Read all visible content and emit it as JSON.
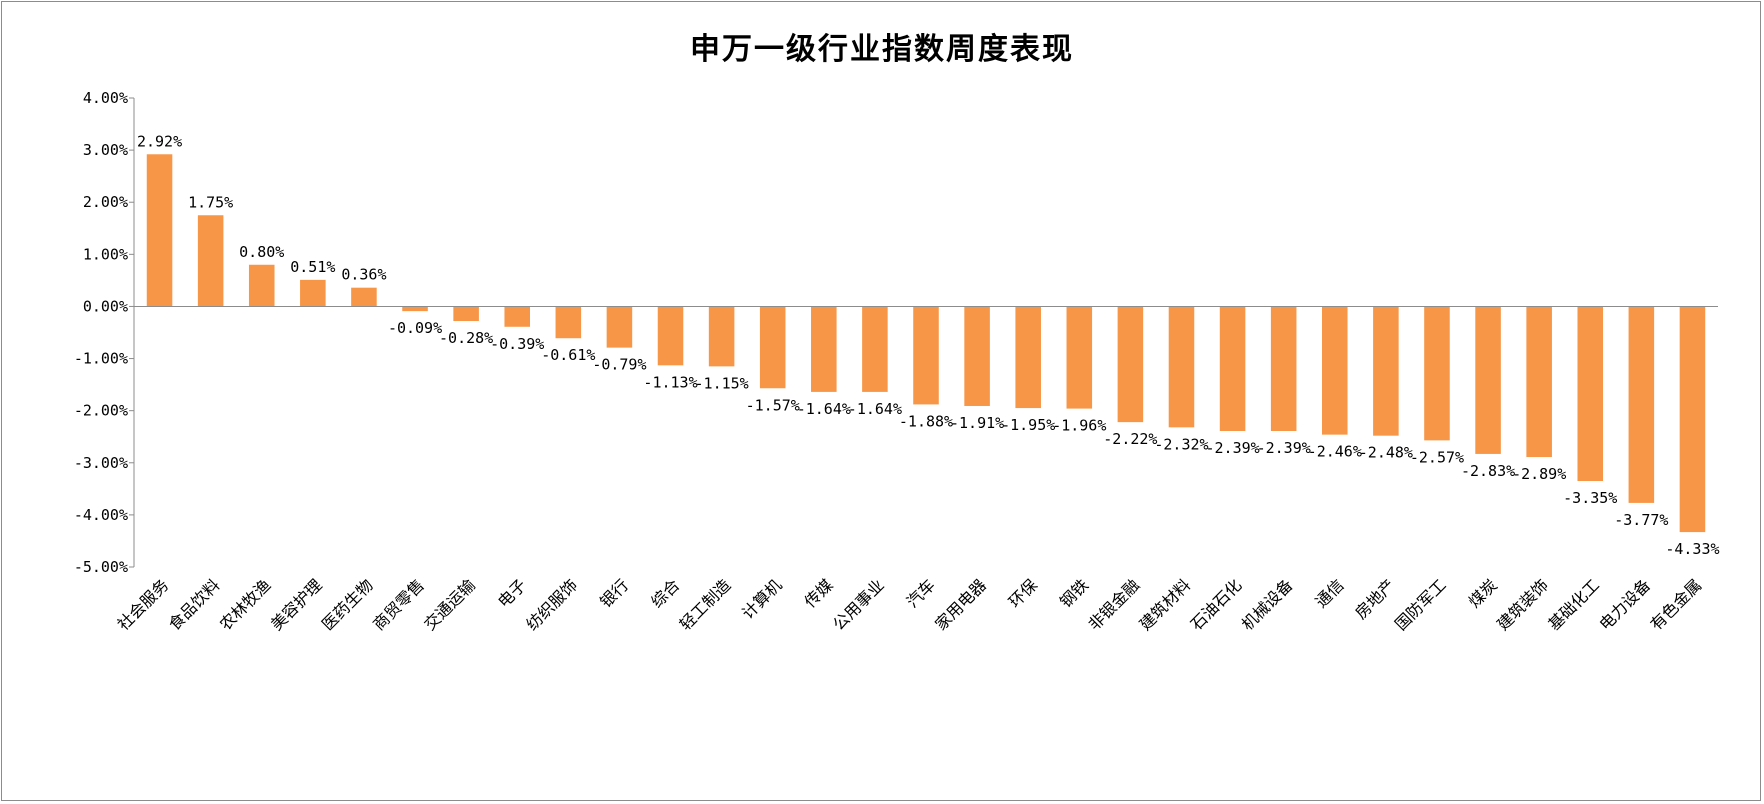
{
  "chart_data": {
    "type": "bar",
    "title": "申万一级行业指数周度表现",
    "xlabel": "",
    "ylabel": "",
    "ylim": [
      -5,
      4
    ],
    "yticks": [
      4,
      3,
      2,
      1,
      0,
      -1,
      -2,
      -3,
      -4,
      -5
    ],
    "ytick_labels": [
      "4.00%",
      "3.00%",
      "2.00%",
      "1.00%",
      "0.00%",
      "-1.00%",
      "-2.00%",
      "-3.00%",
      "-4.00%",
      "-5.00%"
    ],
    "grid": false,
    "legend": "none",
    "bar_color": "#F79646",
    "categories": [
      "社会服务",
      "食品饮料",
      "农林牧渔",
      "美容护理",
      "医药生物",
      "商贸零售",
      "交通运输",
      "电子",
      "纺织服饰",
      "银行",
      "综合",
      "轻工制造",
      "计算机",
      "传媒",
      "公用事业",
      "汽车",
      "家用电器",
      "环保",
      "钢铁",
      "非银金融",
      "建筑材料",
      "石油石化",
      "机械设备",
      "通信",
      "房地产",
      "国防军工",
      "煤炭",
      "建筑装饰",
      "基础化工",
      "电力设备",
      "有色金属"
    ],
    "values": [
      2.92,
      1.75,
      0.8,
      0.51,
      0.36,
      -0.09,
      -0.28,
      -0.39,
      -0.61,
      -0.79,
      -1.13,
      -1.15,
      -1.57,
      -1.64,
      -1.64,
      -1.88,
      -1.91,
      -1.95,
      -1.96,
      -2.22,
      -2.32,
      -2.39,
      -2.39,
      -2.46,
      -2.48,
      -2.57,
      -2.83,
      -2.89,
      -3.35,
      -3.77,
      -4.33
    ],
    "value_labels": [
      "2.92%",
      "1.75%",
      "0.80%",
      "0.51%",
      "0.36%",
      "-0.09%",
      "-0.28%",
      "-0.39%",
      "-0.61%",
      "-0.79%",
      "-1.13%",
      "-1.15%",
      "-1.57%",
      "-1.64%",
      "-1.64%",
      "-1.88%",
      "-1.91%",
      "-1.95%",
      "-1.96%",
      "-2.22%",
      "-2.32%",
      "-2.39%",
      "-2.39%",
      "-2.46%",
      "-2.48%",
      "-2.57%",
      "-2.83%",
      "-2.89%",
      "-3.35%",
      "-3.77%",
      "-4.33%"
    ]
  }
}
